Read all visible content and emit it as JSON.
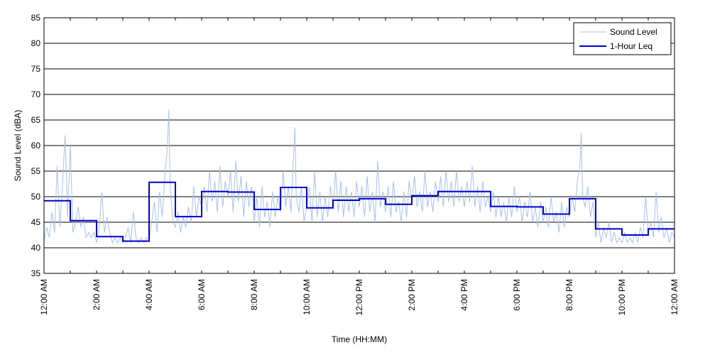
{
  "chart_data": {
    "type": "line",
    "xlabel": "Time (HH:MM)",
    "ylabel": "Sound Level (dBA)",
    "ylim": [
      35,
      85
    ],
    "xlim": [
      0,
      24
    ],
    "x_unit": "hours since 12:00 AM",
    "y_ticks": [
      35,
      40,
      45,
      50,
      55,
      60,
      65,
      70,
      75,
      80,
      85
    ],
    "x_ticks": [
      0,
      2,
      4,
      6,
      8,
      10,
      12,
      14,
      16,
      18,
      20,
      22,
      24
    ],
    "x_tick_labels": [
      "12:00 AM",
      "2:00 AM",
      "4:00 AM",
      "6:00 AM",
      "8:00 AM",
      "10:00 AM",
      "12:00 PM",
      "2:00 PM",
      "4:00 PM",
      "6:00 PM",
      "8:00 PM",
      "10:00 PM",
      "12:00 AM"
    ],
    "grid": "horizontal",
    "legend": "top-right",
    "series": [
      {
        "name": "Sound Level",
        "style": "thin line",
        "color": "#a8c0f0",
        "description": "1-second sound level samples (approximate envelope)",
        "points": [
          [
            0.0,
            41.5
          ],
          [
            0.1,
            44
          ],
          [
            0.2,
            42
          ],
          [
            0.3,
            47
          ],
          [
            0.4,
            43
          ],
          [
            0.5,
            56
          ],
          [
            0.6,
            44
          ],
          [
            0.7,
            52
          ],
          [
            0.8,
            62
          ],
          [
            0.9,
            46
          ],
          [
            1.0,
            60
          ],
          [
            1.1,
            43
          ],
          [
            1.2,
            45
          ],
          [
            1.3,
            48
          ],
          [
            1.4,
            44
          ],
          [
            1.5,
            46
          ],
          [
            1.6,
            42
          ],
          [
            1.7,
            43
          ],
          [
            1.8,
            42
          ],
          [
            1.9,
            43
          ],
          [
            2.0,
            41
          ],
          [
            2.1,
            44
          ],
          [
            2.2,
            51
          ],
          [
            2.3,
            43
          ],
          [
            2.4,
            46
          ],
          [
            2.5,
            43
          ],
          [
            2.6,
            41
          ],
          [
            2.7,
            42
          ],
          [
            2.8,
            41
          ],
          [
            2.9,
            42
          ],
          [
            3.0,
            41
          ],
          [
            3.1,
            42
          ],
          [
            3.2,
            44
          ],
          [
            3.3,
            41
          ],
          [
            3.4,
            47
          ],
          [
            3.5,
            42
          ],
          [
            3.6,
            41
          ],
          [
            3.7,
            42
          ],
          [
            3.8,
            41
          ],
          [
            3.9,
            42
          ],
          [
            4.0,
            41.5
          ],
          [
            4.1,
            45
          ],
          [
            4.2,
            49
          ],
          [
            4.3,
            43
          ],
          [
            4.4,
            51
          ],
          [
            4.5,
            46
          ],
          [
            4.6,
            54
          ],
          [
            4.7,
            60
          ],
          [
            4.75,
            67
          ],
          [
            4.8,
            52
          ],
          [
            4.9,
            45
          ],
          [
            5.0,
            44
          ],
          [
            5.1,
            47
          ],
          [
            5.2,
            43
          ],
          [
            5.3,
            46
          ],
          [
            5.4,
            44
          ],
          [
            5.5,
            48
          ],
          [
            5.6,
            45
          ],
          [
            5.7,
            52
          ],
          [
            5.8,
            46
          ],
          [
            5.9,
            50
          ],
          [
            6.0,
            48
          ],
          [
            6.1,
            52
          ],
          [
            6.2,
            47
          ],
          [
            6.3,
            55
          ],
          [
            6.4,
            49
          ],
          [
            6.5,
            53
          ],
          [
            6.6,
            47
          ],
          [
            6.7,
            56
          ],
          [
            6.8,
            48
          ],
          [
            6.9,
            53
          ],
          [
            7.0,
            50
          ],
          [
            7.1,
            55
          ],
          [
            7.2,
            47
          ],
          [
            7.3,
            57
          ],
          [
            7.4,
            49
          ],
          [
            7.5,
            54
          ],
          [
            7.6,
            46
          ],
          [
            7.7,
            53
          ],
          [
            7.8,
            48
          ],
          [
            7.9,
            52
          ],
          [
            8.0,
            45
          ],
          [
            8.1,
            50
          ],
          [
            8.2,
            44
          ],
          [
            8.3,
            52
          ],
          [
            8.4,
            46
          ],
          [
            8.5,
            49
          ],
          [
            8.6,
            44
          ],
          [
            8.7,
            51
          ],
          [
            8.8,
            46
          ],
          [
            8.9,
            50
          ],
          [
            9.0,
            47
          ],
          [
            9.1,
            55
          ],
          [
            9.2,
            48
          ],
          [
            9.3,
            52
          ],
          [
            9.4,
            47
          ],
          [
            9.5,
            58
          ],
          [
            9.55,
            63.5
          ],
          [
            9.6,
            50
          ],
          [
            9.7,
            47
          ],
          [
            9.8,
            52
          ],
          [
            9.9,
            45
          ],
          [
            10.0,
            48
          ],
          [
            10.1,
            52
          ],
          [
            10.2,
            45
          ],
          [
            10.3,
            55
          ],
          [
            10.4,
            46
          ],
          [
            10.5,
            51
          ],
          [
            10.6,
            45
          ],
          [
            10.7,
            50
          ],
          [
            10.8,
            46
          ],
          [
            10.9,
            52
          ],
          [
            11.0,
            48
          ],
          [
            11.1,
            55
          ],
          [
            11.2,
            47
          ],
          [
            11.3,
            53
          ],
          [
            11.4,
            46
          ],
          [
            11.5,
            52
          ],
          [
            11.6,
            47
          ],
          [
            11.7,
            51
          ],
          [
            11.8,
            46
          ],
          [
            11.9,
            53
          ],
          [
            12.0,
            48
          ],
          [
            12.1,
            52
          ],
          [
            12.2,
            46
          ],
          [
            12.3,
            54
          ],
          [
            12.4,
            47
          ],
          [
            12.5,
            51
          ],
          [
            12.6,
            45
          ],
          [
            12.7,
            57
          ],
          [
            12.8,
            48
          ],
          [
            12.9,
            51
          ],
          [
            13.0,
            47
          ],
          [
            13.1,
            52
          ],
          [
            13.2,
            46
          ],
          [
            13.3,
            53
          ],
          [
            13.4,
            47
          ],
          [
            13.5,
            49
          ],
          [
            13.6,
            45
          ],
          [
            13.7,
            51
          ],
          [
            13.8,
            46
          ],
          [
            13.9,
            53
          ],
          [
            14.0,
            49
          ],
          [
            14.1,
            54
          ],
          [
            14.2,
            48
          ],
          [
            14.3,
            51
          ],
          [
            14.4,
            47
          ],
          [
            14.5,
            55
          ],
          [
            14.6,
            48
          ],
          [
            14.7,
            51
          ],
          [
            14.8,
            47
          ],
          [
            14.9,
            53
          ],
          [
            15.0,
            49
          ],
          [
            15.1,
            54
          ],
          [
            15.2,
            48
          ],
          [
            15.3,
            55
          ],
          [
            15.4,
            49
          ],
          [
            15.5,
            53
          ],
          [
            15.6,
            48
          ],
          [
            15.7,
            55
          ],
          [
            15.8,
            49
          ],
          [
            15.9,
            52
          ],
          [
            16.0,
            48
          ],
          [
            16.1,
            53
          ],
          [
            16.2,
            49
          ],
          [
            16.3,
            56
          ],
          [
            16.4,
            48
          ],
          [
            16.5,
            52
          ],
          [
            16.6,
            47
          ],
          [
            16.7,
            53
          ],
          [
            16.8,
            48
          ],
          [
            16.9,
            50
          ],
          [
            17.0,
            47
          ],
          [
            17.1,
            51
          ],
          [
            17.2,
            46
          ],
          [
            17.3,
            50
          ],
          [
            17.4,
            46
          ],
          [
            17.5,
            49
          ],
          [
            17.6,
            45
          ],
          [
            17.7,
            50
          ],
          [
            17.8,
            46
          ],
          [
            17.9,
            52
          ],
          [
            18.0,
            47
          ],
          [
            18.1,
            50
          ],
          [
            18.2,
            45
          ],
          [
            18.3,
            49
          ],
          [
            18.4,
            46
          ],
          [
            18.5,
            51
          ],
          [
            18.6,
            45
          ],
          [
            18.7,
            48
          ],
          [
            18.8,
            44
          ],
          [
            18.9,
            49
          ],
          [
            19.0,
            45
          ],
          [
            19.1,
            48
          ],
          [
            19.2,
            44
          ],
          [
            19.3,
            50
          ],
          [
            19.4,
            45
          ],
          [
            19.5,
            47
          ],
          [
            19.6,
            43
          ],
          [
            19.7,
            49
          ],
          [
            19.8,
            44
          ],
          [
            19.9,
            48
          ],
          [
            20.0,
            46
          ],
          [
            20.1,
            50
          ],
          [
            20.2,
            47
          ],
          [
            20.3,
            53
          ],
          [
            20.4,
            56
          ],
          [
            20.45,
            62.5
          ],
          [
            20.5,
            50
          ],
          [
            20.6,
            48
          ],
          [
            20.7,
            52
          ],
          [
            20.8,
            46
          ],
          [
            20.9,
            49
          ],
          [
            21.0,
            42
          ],
          [
            21.1,
            45
          ],
          [
            21.2,
            41
          ],
          [
            21.3,
            44
          ],
          [
            21.4,
            42
          ],
          [
            21.5,
            45
          ],
          [
            21.6,
            41
          ],
          [
            21.7,
            43
          ],
          [
            21.8,
            41
          ],
          [
            21.9,
            42
          ],
          [
            22.0,
            41
          ],
          [
            22.1,
            43
          ],
          [
            22.2,
            41
          ],
          [
            22.3,
            42
          ],
          [
            22.4,
            41
          ],
          [
            22.5,
            43
          ],
          [
            22.6,
            41
          ],
          [
            22.7,
            44
          ],
          [
            22.8,
            42
          ],
          [
            22.9,
            50
          ],
          [
            23.0,
            43
          ],
          [
            23.1,
            45
          ],
          [
            23.2,
            42
          ],
          [
            23.3,
            51
          ],
          [
            23.4,
            43
          ],
          [
            23.5,
            46
          ],
          [
            23.6,
            42
          ],
          [
            23.7,
            44
          ],
          [
            23.8,
            41
          ],
          [
            23.9,
            43
          ],
          [
            24.0,
            42
          ]
        ]
      },
      {
        "name": "1-Hour Leq",
        "style": "step",
        "color": "#0000cc",
        "description": "Hourly equivalent sound level, value for each hour 0-23",
        "values": [
          49.2,
          45.3,
          42.2,
          41.3,
          52.8,
          46.1,
          51.0,
          50.9,
          47.5,
          51.8,
          47.8,
          49.3,
          49.6,
          48.5,
          50.2,
          51.0,
          51.0,
          48.1,
          48.0,
          46.6,
          49.6,
          43.7,
          42.5,
          43.7
        ]
      }
    ]
  }
}
